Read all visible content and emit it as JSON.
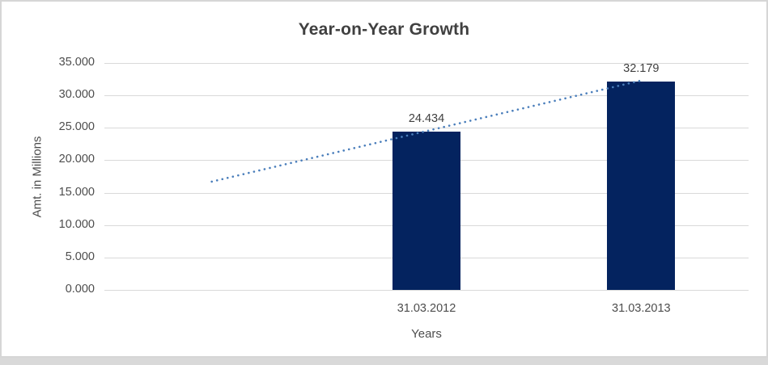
{
  "chart_data": {
    "type": "bar",
    "title": "Year-on-Year Growth",
    "xlabel": "Years",
    "ylabel": "Amt. in Millions",
    "ylim": [
      0,
      35
    ],
    "grid": true,
    "legend": "none",
    "y_ticks": [
      {
        "value": 0,
        "label": "0.000"
      },
      {
        "value": 5,
        "label": "5.000"
      },
      {
        "value": 10,
        "label": "10.000"
      },
      {
        "value": 15,
        "label": "15.000"
      },
      {
        "value": 20,
        "label": "20.000"
      },
      {
        "value": 25,
        "label": "25.000"
      },
      {
        "value": 30,
        "label": "30.000"
      },
      {
        "value": 35,
        "label": "35.000"
      }
    ],
    "categories": [
      "31.03.2012",
      "31.03.2013"
    ],
    "values": [
      24.434,
      32.179
    ],
    "data_labels": [
      "24.434",
      "32.179"
    ],
    "bar_color": "#04235f",
    "trendline": {
      "style": "dotted",
      "color": "#4a7ebb",
      "start_value": 16.7,
      "end_value": 32.3
    }
  },
  "colors": {
    "gridline": "#d9d9d9",
    "text_dark": "#404040",
    "text_axis": "#4d4d4d",
    "chart_border": "#d6d6d6",
    "background_strip": "#d9d9d9"
  }
}
